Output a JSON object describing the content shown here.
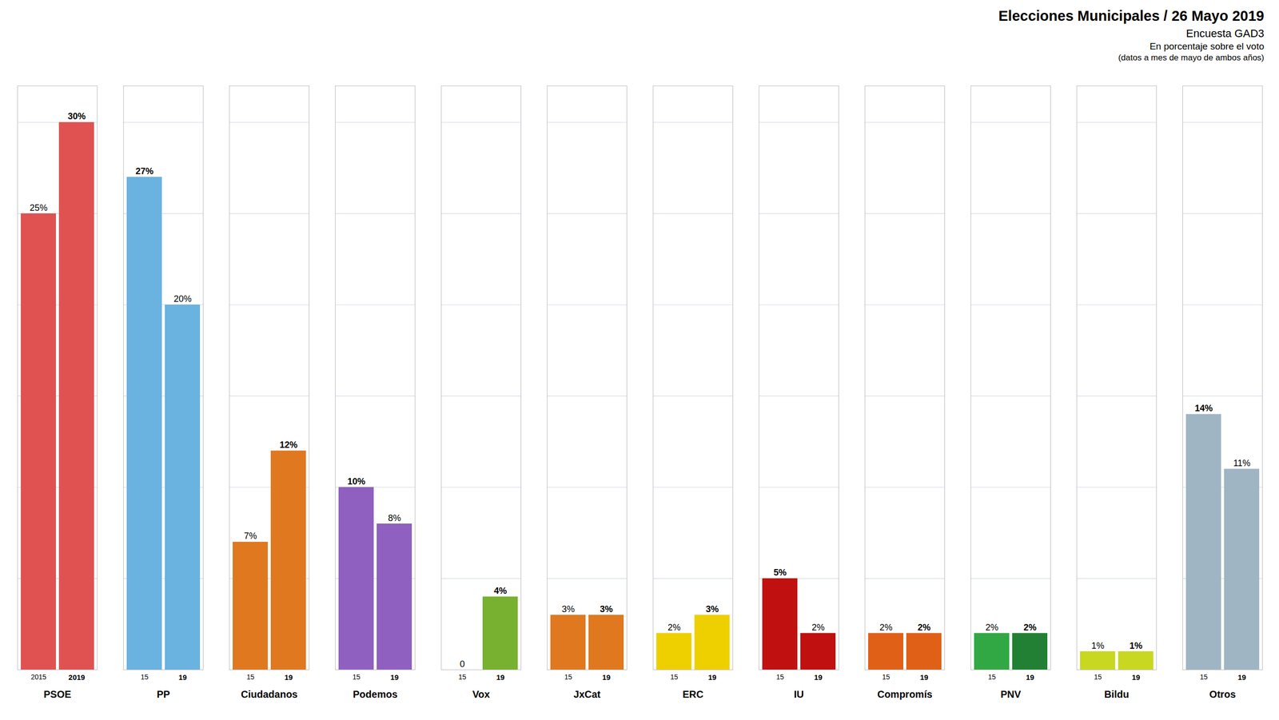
{
  "chart_data": {
    "type": "bar",
    "title": "Elecciones Municipales / 26 Mayo 2019",
    "subtitle": [
      "Encuesta GAD3",
      "En porcentaje sobre el voto",
      "(datos a mes de mayo de ambos años)"
    ],
    "categories": [
      "PSOE",
      "PP",
      "Ciudadanos",
      "Podemos",
      "Vox",
      "JxCat",
      "ERC",
      "IU",
      "Compromís",
      "PNV",
      "Bildu",
      "Otros"
    ],
    "series": [
      {
        "name": "2015",
        "labels": [
          "2015",
          "15",
          "15",
          "15",
          "15",
          "15",
          "15",
          "15",
          "15",
          "15",
          "15",
          "15"
        ],
        "values": [
          25,
          27,
          7,
          10,
          0,
          3,
          2,
          5,
          2,
          2,
          1,
          14
        ],
        "value_labels": [
          "25%",
          "27%",
          "7%",
          "10%",
          "0",
          "3%",
          "2%",
          "5%",
          "2%",
          "2%",
          "1%",
          "14%"
        ],
        "colors": [
          "#e05252",
          "#6ab2e0",
          "#e07820",
          "#9060c0",
          "#eeeeee",
          "#e07820",
          "#eed000",
          "#c01010",
          "#e06018",
          "#32a844",
          "#c8d820",
          "#9fb5c3"
        ]
      },
      {
        "name": "2019",
        "labels": [
          "2019",
          "19",
          "19",
          "19",
          "19",
          "19",
          "19",
          "19",
          "19",
          "19",
          "19",
          "19"
        ],
        "values": [
          30,
          20,
          12,
          8,
          4,
          3,
          3,
          2,
          2,
          2,
          1,
          11
        ],
        "value_labels": [
          "30%",
          "20%",
          "12%",
          "8%",
          "4%",
          "3%",
          "3%",
          "2%",
          "2%",
          "2%",
          "1%",
          "11%"
        ],
        "colors": [
          "#e05252",
          "#6ab2e0",
          "#e07820",
          "#9060c0",
          "#78b030",
          "#e07820",
          "#eed000",
          "#c01010",
          "#e06018",
          "#228035",
          "#c8d820",
          "#9fb5c3"
        ]
      }
    ],
    "ylim": [
      0,
      32
    ],
    "yticks": [
      0,
      5,
      10,
      15,
      20,
      25,
      30
    ],
    "grid": true,
    "data_labels": true,
    "tick_labels": "x"
  }
}
